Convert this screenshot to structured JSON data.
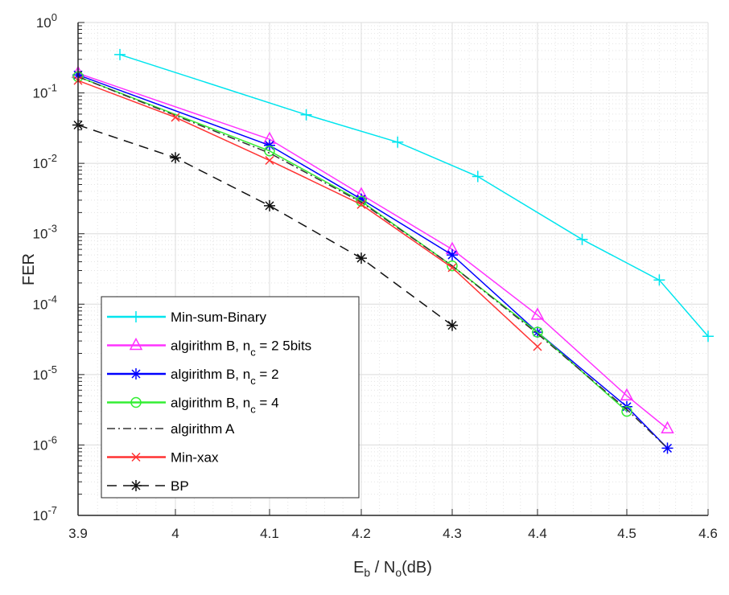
{
  "chart_data": {
    "type": "line",
    "title": "",
    "xlabel": {
      "main": "E",
      "sub1": "b",
      "mid": " / N",
      "sub2": "o",
      "tail": "(dB)"
    },
    "ylabel": "FER",
    "xlim": [
      3.9,
      4.6
    ],
    "ylim": [
      1e-07,
      1
    ],
    "yscale": "log",
    "grid": true,
    "minor_grid": true,
    "legend_position": "bottom-left",
    "xticks": [
      "3.9",
      "4",
      "4.1",
      "4.2",
      "4.3",
      "4.4",
      "4.5",
      "4.6"
    ],
    "yticks": [
      {
        "base": "10",
        "exp": "0"
      },
      {
        "base": "10",
        "exp": "-1"
      },
      {
        "base": "10",
        "exp": "-2"
      },
      {
        "base": "10",
        "exp": "-3"
      },
      {
        "base": "10",
        "exp": "-4"
      },
      {
        "base": "10",
        "exp": "-5"
      },
      {
        "base": "10",
        "exp": "-6"
      },
      {
        "base": "10",
        "exp": "-7"
      }
    ],
    "series": [
      {
        "name": "Min-sum-Binary",
        "legend": {
          "pre": "Min-sum-Binary",
          "sub": "",
          "post": ""
        },
        "color": "#00e5ee",
        "marker": "plus",
        "dash": "solid",
        "x": [
          3.943,
          4.14,
          4.24,
          4.33,
          4.45,
          4.54,
          4.6
        ],
        "y": [
          0.35,
          0.049,
          0.02,
          0.0065,
          0.00083,
          0.00022,
          3.5e-05
        ]
      },
      {
        "name": "algirithm B, nc = 2 5bits",
        "legend": {
          "pre": "algirithm B, n",
          "sub": "c",
          "post": " = 2 5bits"
        },
        "color": "#ff33ff",
        "marker": "triangle",
        "dash": "solid",
        "x": [
          3.9,
          4.1,
          4.2,
          4.3,
          4.4,
          4.5,
          4.55
        ],
        "y": [
          0.19,
          0.022,
          0.0036,
          0.0006,
          7e-05,
          5e-06,
          1.7e-06
        ]
      },
      {
        "name": "algirithm B, nc = 2",
        "legend": {
          "pre": "algirithm B, n",
          "sub": "c",
          "post": " = 2"
        },
        "color": "#0000ff",
        "marker": "asterisk",
        "dash": "solid",
        "x": [
          3.9,
          4.1,
          4.2,
          4.3,
          4.4,
          4.5,
          4.55
        ],
        "y": [
          0.18,
          0.018,
          0.0031,
          0.0005,
          4e-05,
          3.5e-06,
          9e-07
        ]
      },
      {
        "name": "algirithm B, nc = 4",
        "legend": {
          "pre": "algirithm B, n",
          "sub": "c",
          "post": " = 4"
        },
        "color": "#33ee33",
        "marker": "circle",
        "dash": "solid",
        "x": [
          3.9,
          4.1,
          4.2,
          4.3,
          4.4,
          4.5
        ],
        "y": [
          0.17,
          0.015,
          0.0029,
          0.00035,
          4e-05,
          3e-06
        ]
      },
      {
        "name": "algirithm A",
        "legend": {
          "pre": "algirithm A",
          "sub": "",
          "post": ""
        },
        "color": "#333333",
        "marker": "none",
        "dash": "dashdot",
        "x": [
          3.9,
          4.1,
          4.2,
          4.3,
          4.4,
          4.5,
          4.55
        ],
        "y": [
          0.17,
          0.014,
          0.0028,
          0.00035,
          3.8e-05,
          3.2e-06,
          9e-07
        ]
      },
      {
        "name": "Min-xax",
        "legend": {
          "pre": " Min-xax",
          "sub": "",
          "post": ""
        },
        "color": "#ff3333",
        "marker": "x",
        "dash": "solid",
        "x": [
          3.9,
          4.0,
          4.1,
          4.2,
          4.3,
          4.4
        ],
        "y": [
          0.15,
          0.045,
          0.011,
          0.0026,
          0.00033,
          2.5e-05
        ]
      },
      {
        "name": "BP",
        "legend": {
          "pre": "BP",
          "sub": "",
          "post": ""
        },
        "color": "#111111",
        "marker": "asterisk",
        "dash": "dashed",
        "x": [
          3.9,
          4.0,
          4.1,
          4.2,
          4.3
        ],
        "y": [
          0.035,
          0.012,
          0.0025,
          0.00045,
          5e-05
        ]
      }
    ]
  }
}
